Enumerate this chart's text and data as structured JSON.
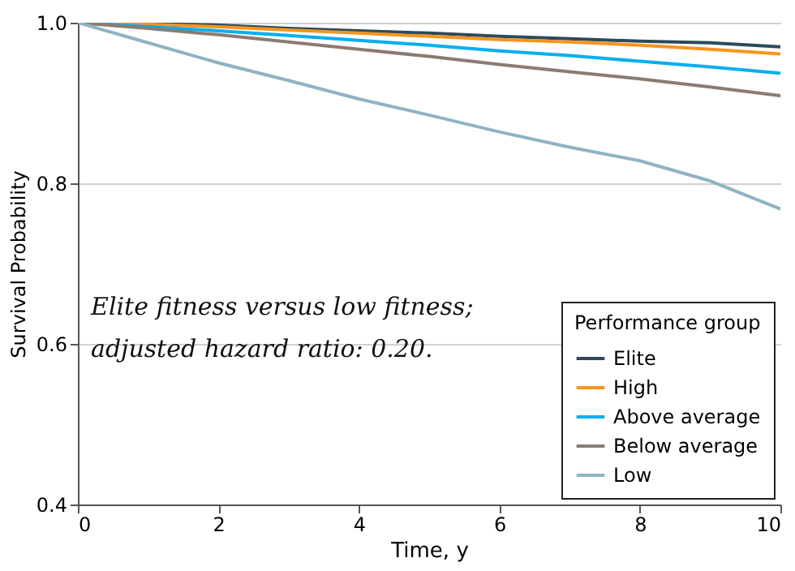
{
  "chart_data": {
    "type": "line",
    "xlabel": "Time, y",
    "ylabel": "Survival Probability",
    "legend_title": "Performance group",
    "x": [
      0,
      1,
      2,
      3,
      4,
      5,
      6,
      7,
      8,
      9,
      10
    ],
    "series": [
      {
        "name": "Elite",
        "color": "#2c4a5a",
        "values": [
          1,
          0.999,
          0.997,
          0.993,
          0.99,
          0.987,
          0.983,
          0.98,
          0.977,
          0.975,
          0.97
        ]
      },
      {
        "name": "High",
        "color": "#f7941d",
        "values": [
          1,
          0.998,
          0.995,
          0.991,
          0.987,
          0.983,
          0.979,
          0.976,
          0.972,
          0.967,
          0.961
        ]
      },
      {
        "name": "Above average",
        "color": "#00aeef",
        "values": [
          1,
          0.995,
          0.99,
          0.984,
          0.978,
          0.972,
          0.965,
          0.959,
          0.952,
          0.945,
          0.937
        ]
      },
      {
        "name": "Below average",
        "color": "#8c7b70",
        "values": [
          1,
          0.993,
          0.985,
          0.976,
          0.967,
          0.958,
          0.948,
          0.939,
          0.93,
          0.92,
          0.909
        ]
      },
      {
        "name": "Low",
        "color": "#8fb3c3",
        "values": [
          1,
          0.975,
          0.95,
          0.928,
          0.905,
          0.885,
          0.864,
          0.845,
          0.828,
          0.803,
          0.768
        ]
      }
    ],
    "xlim": [
      0,
      10
    ],
    "xticks": [
      0,
      2,
      4,
      6,
      8,
      10
    ],
    "ylim": [
      0.4,
      1
    ],
    "yticks": [
      0.4,
      0.6,
      0.8,
      {
        "value": 1,
        "label": "1.0"
      }
    ],
    "grid": "y",
    "legend": "bottom right",
    "annotations": [
      "Elite fitness versus low fitness;\nadjusted hazard ratio: 0.20."
    ]
  }
}
